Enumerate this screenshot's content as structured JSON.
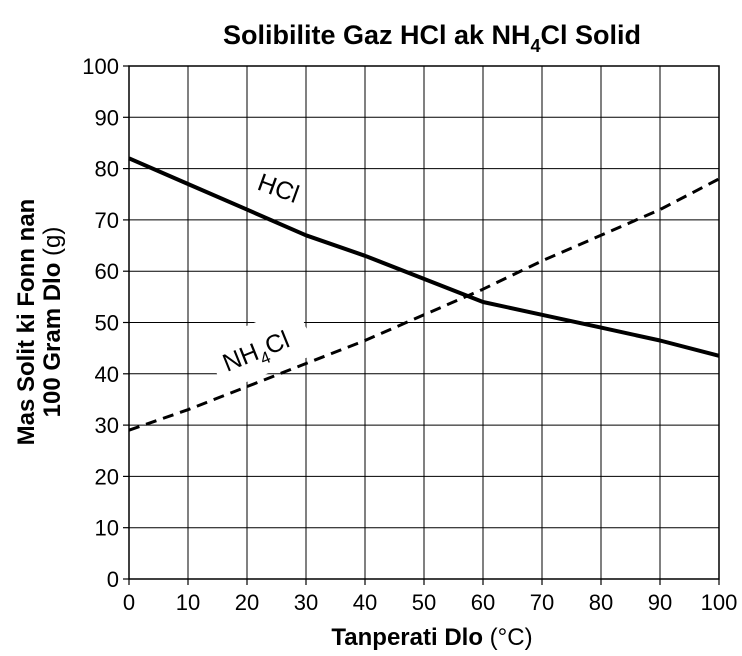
{
  "chart_data": {
    "type": "line",
    "title": "Solibilite Gaz HCl ak NH4Cl Solid",
    "title_parts": {
      "a": "Solibilite Gaz HCl ak NH",
      "sub": "4",
      "b": "Cl Solid"
    },
    "xlabel": "Tanperati Dlo",
    "xlabel_unit": "(°C)",
    "ylabel_line1": "Mas Solit ki Fonn nan",
    "ylabel_line2": "100 Gram Dlo",
    "ylabel_unit": "(g)",
    "xlim": [
      0,
      100
    ],
    "ylim": [
      0,
      100
    ],
    "x_ticks": [
      0,
      10,
      20,
      30,
      40,
      50,
      60,
      70,
      80,
      90,
      100
    ],
    "y_ticks": [
      0,
      10,
      20,
      30,
      40,
      50,
      60,
      70,
      80,
      90,
      100
    ],
    "grid": true,
    "series": [
      {
        "name": "HCl",
        "style": "solid",
        "color": "#000000",
        "x": [
          0,
          10,
          20,
          30,
          40,
          50,
          60,
          70,
          80,
          90,
          100
        ],
        "y": [
          82,
          77,
          72,
          67,
          63,
          58.5,
          54,
          51.5,
          49,
          46.5,
          43.5
        ]
      },
      {
        "name": "NH4Cl",
        "name_parts": {
          "a": "NH",
          "sub": "4",
          "b": "Cl"
        },
        "style": "dashed",
        "color": "#000000",
        "x": [
          0,
          10,
          20,
          30,
          40,
          50,
          60,
          70,
          80,
          90,
          100
        ],
        "y": [
          29,
          33,
          37.5,
          42,
          46.5,
          51.5,
          56.5,
          62,
          67,
          72,
          78
        ]
      }
    ]
  }
}
